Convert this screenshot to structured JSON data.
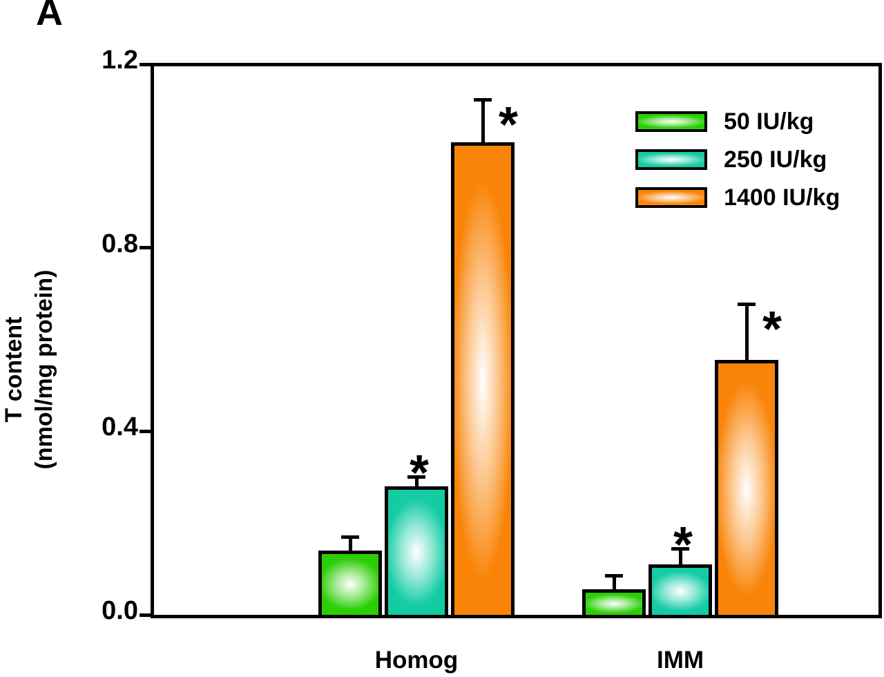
{
  "panel_label": "A",
  "chart_data": {
    "type": "bar",
    "title": "",
    "ylabel_lines": [
      "T content",
      "(nmol/mg protein)"
    ],
    "ylabel": "T content (nmol/mg protein)",
    "xlabel": "",
    "ylim": [
      0,
      1.2
    ],
    "yticks": [
      "0.0",
      "0.4",
      "0.8",
      "1.2"
    ],
    "categories": [
      "Homog",
      "IMM"
    ],
    "series": [
      {
        "name": "50 IU/kg",
        "color": "#2BCE04",
        "values": [
          0.14,
          0.055
        ],
        "errors": [
          0.025,
          0.027
        ],
        "significant": [
          false,
          false
        ]
      },
      {
        "name": "250 IU/kg",
        "color": "#14CCA4",
        "values": [
          0.28,
          0.11
        ],
        "errors": [
          0.016,
          0.03
        ],
        "significant": [
          true,
          true
        ]
      },
      {
        "name": "1400 IU/kg",
        "color": "#F98408",
        "values": [
          1.03,
          0.555
        ],
        "errors": [
          0.088,
          0.118
        ],
        "significant": [
          true,
          true
        ]
      }
    ],
    "significance_marker": "*",
    "error_bars": "upper only",
    "legend_position": "top-right",
    "grid": false
  }
}
